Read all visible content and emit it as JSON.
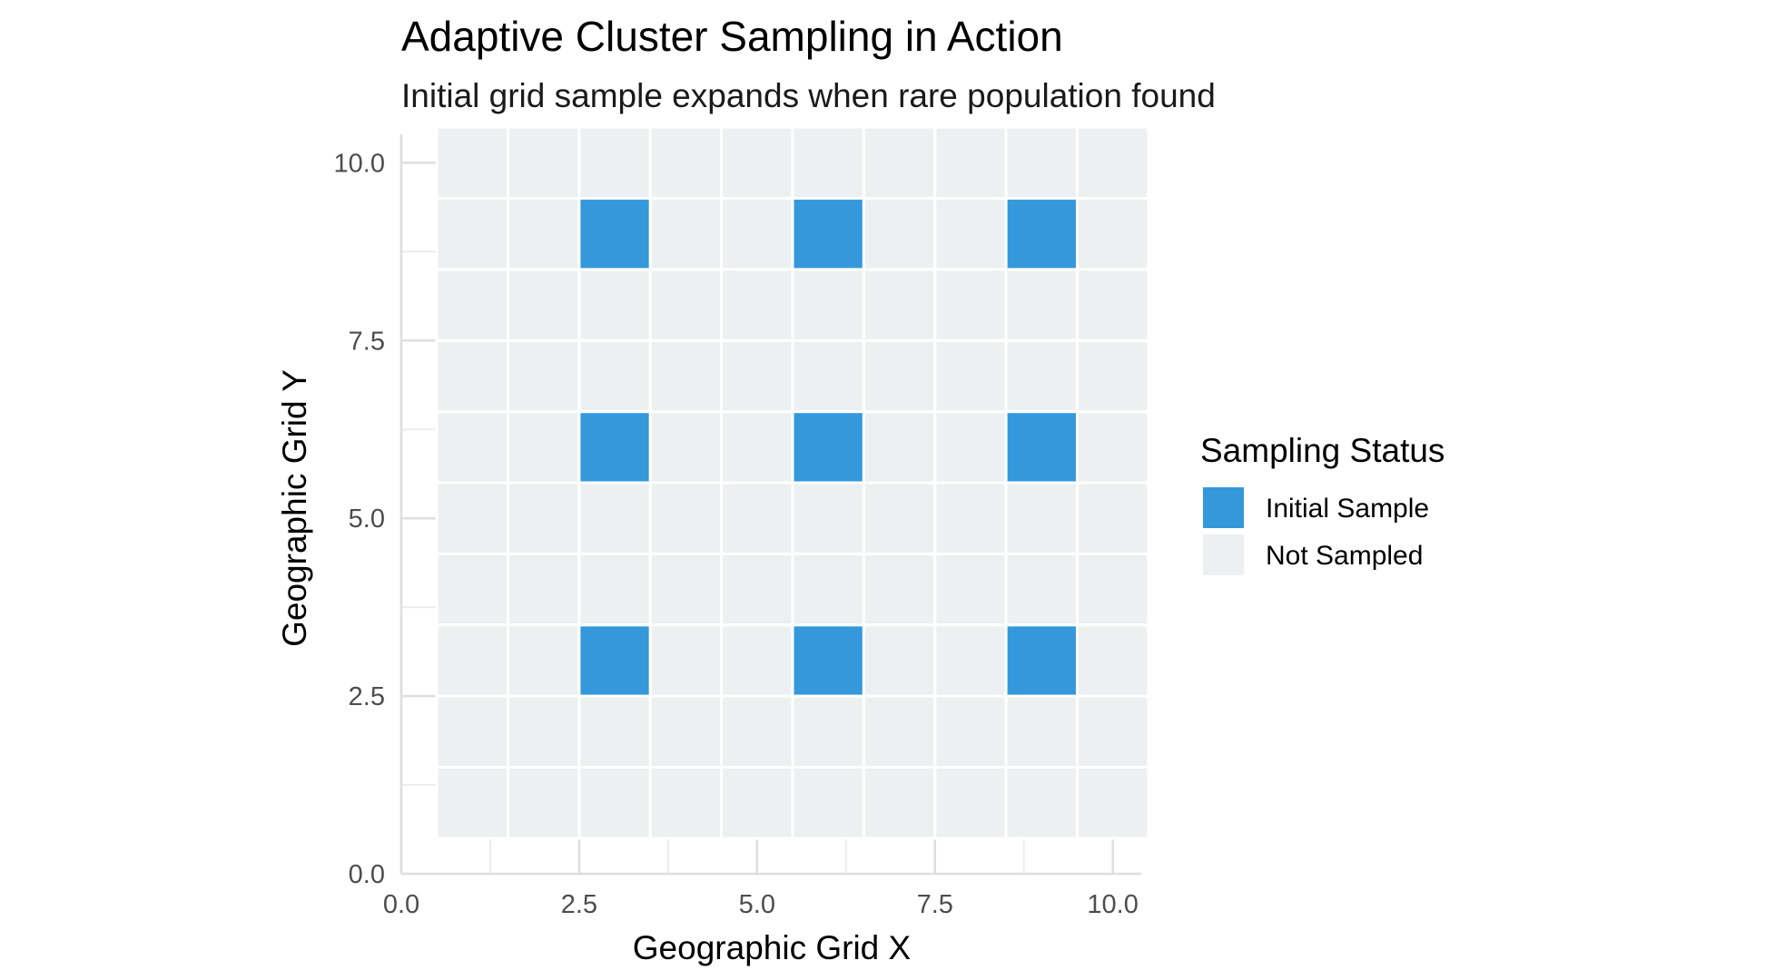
{
  "chart_data": {
    "type": "heatmap",
    "title": "Adaptive Cluster Sampling in Action",
    "subtitle": "Initial grid sample expands when rare population found",
    "xlabel": "Geographic Grid X",
    "ylabel": "Geographic Grid Y",
    "xlim": [
      0,
      10.4
    ],
    "ylim": [
      0,
      10.4
    ],
    "x_ticks": [
      "0.0",
      "2.5",
      "5.0",
      "7.5",
      "10.0"
    ],
    "y_ticks": [
      "0.0",
      "2.5",
      "5.0",
      "7.5",
      "10.0"
    ],
    "grid_x": [
      1,
      2,
      3,
      4,
      5,
      6,
      7,
      8,
      9,
      10
    ],
    "grid_y": [
      1,
      2,
      3,
      4,
      5,
      6,
      7,
      8,
      9,
      10
    ],
    "fill_legend_title": "Sampling Status",
    "categories": [
      {
        "name": "Initial Sample",
        "color": "#3498db"
      },
      {
        "name": "Not Sampled",
        "color": "#ecf0f1"
      }
    ],
    "default_category": "Not Sampled",
    "initial_sample_cells": [
      [
        3,
        3
      ],
      [
        6,
        3
      ],
      [
        9,
        3
      ],
      [
        3,
        6
      ],
      [
        6,
        6
      ],
      [
        9,
        6
      ],
      [
        3,
        9
      ],
      [
        6,
        9
      ],
      [
        9,
        9
      ]
    ],
    "grid": true,
    "legend_position": "right"
  }
}
